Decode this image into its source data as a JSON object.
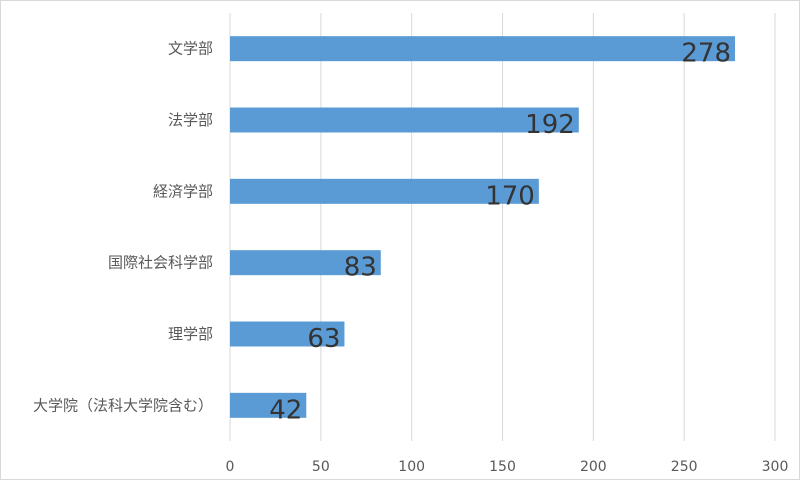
{
  "chart_data": {
    "type": "bar",
    "orientation": "horizontal",
    "categories": [
      "文学部",
      "法学部",
      "経済学部",
      "国際社会科学部",
      "理学部",
      "大学院（法科大学院含む）"
    ],
    "values": [
      278,
      192,
      170,
      83,
      63,
      42
    ],
    "xlim": [
      0,
      300
    ],
    "xticks": [
      0,
      50,
      100,
      150,
      200,
      250,
      300
    ],
    "grid": "vertical",
    "legend": "none",
    "bar_color": "#5b9bd5",
    "data_labels": true
  }
}
